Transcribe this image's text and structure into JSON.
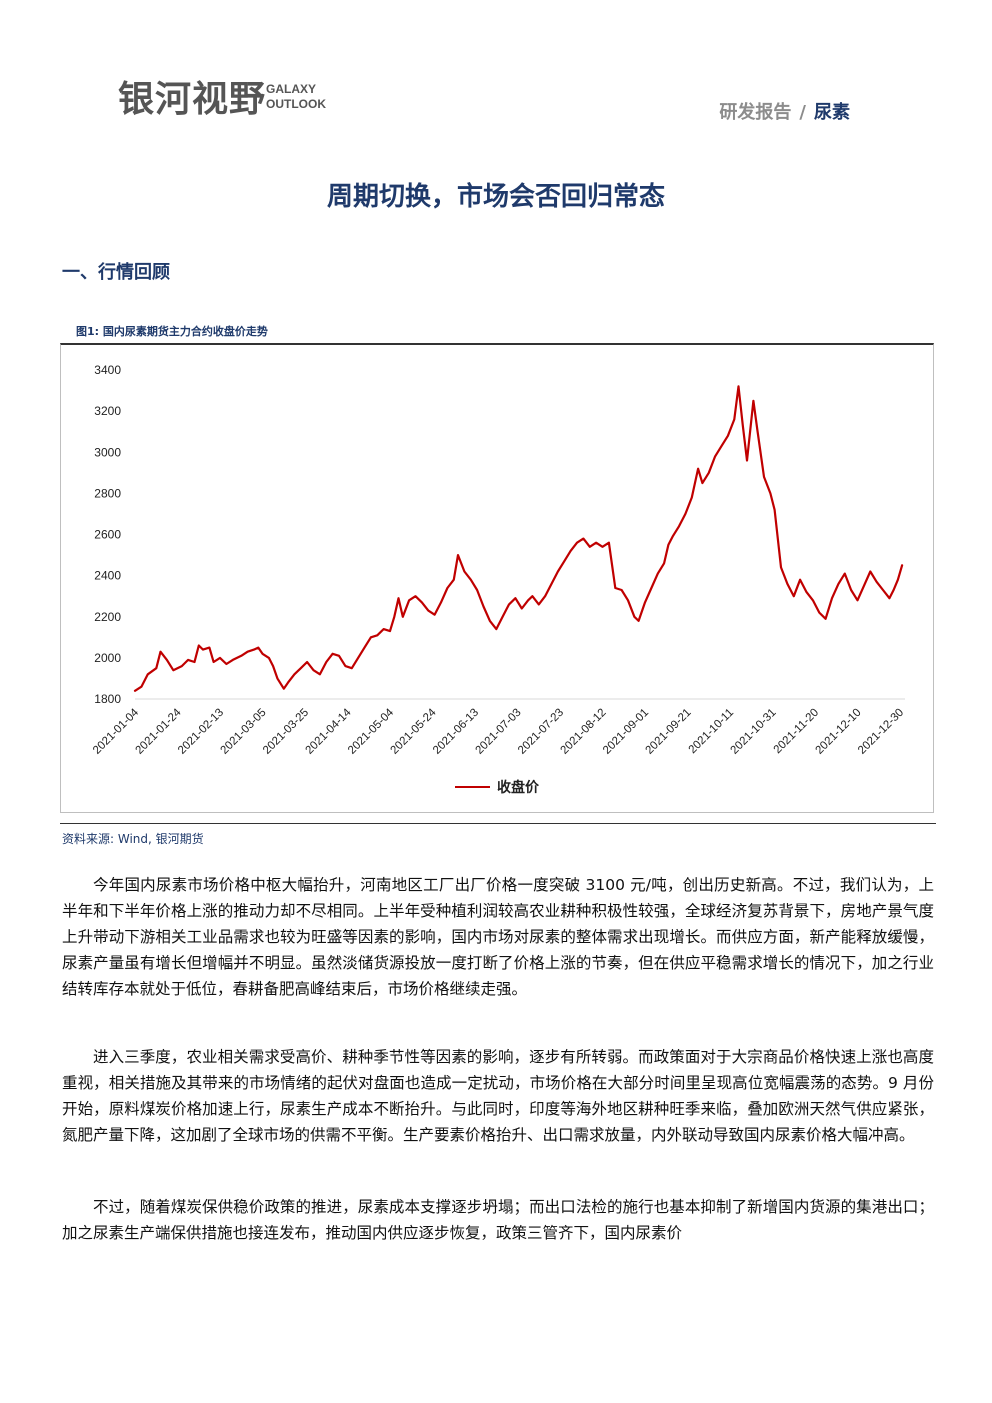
{
  "header": {
    "logo_cn": "银河视野",
    "logo_en_line1": "GALAXY",
    "logo_en_line2": "OUTLOOK",
    "report_type": "研发报告",
    "separator": "/",
    "category": "尿素"
  },
  "title": "周期切换，市场会否回归常态",
  "section1_title": "一、行情回顾",
  "figure": {
    "caption": "图1: 国内尿素期货主力合约收盘价走势",
    "source": "资料来源: Wind, 银河期货"
  },
  "chart_data": {
    "type": "line",
    "title": "",
    "xlabel": "",
    "ylabel": "",
    "ylim": [
      1800,
      3400
    ],
    "y_ticks": [
      1800,
      2000,
      2200,
      2400,
      2600,
      2800,
      3000,
      3200,
      3400
    ],
    "x_tick_labels": [
      "2021-01-04",
      "2021-01-24",
      "2021-02-13",
      "2021-03-05",
      "2021-03-25",
      "2021-04-14",
      "2021-05-04",
      "2021-05-24",
      "2021-06-13",
      "2021-07-03",
      "2021-07-23",
      "2021-08-12",
      "2021-09-01",
      "2021-09-21",
      "2021-10-11",
      "2021-10-31",
      "2021-11-20",
      "2021-12-10",
      "2021-12-30"
    ],
    "x_range": [
      "2021-01-04",
      "2021-12-31"
    ],
    "grid": false,
    "legend_position": "bottom",
    "series": [
      {
        "name": "收盘价",
        "color": "#c00000",
        "points": [
          [
            "2021-01-04",
            1840
          ],
          [
            "2021-01-07",
            1860
          ],
          [
            "2021-01-10",
            1920
          ],
          [
            "2021-01-14",
            1950
          ],
          [
            "2021-01-16",
            2030
          ],
          [
            "2021-01-19",
            1990
          ],
          [
            "2021-01-22",
            1940
          ],
          [
            "2021-01-26",
            1960
          ],
          [
            "2021-01-29",
            1990
          ],
          [
            "2021-02-01",
            1980
          ],
          [
            "2021-02-03",
            2060
          ],
          [
            "2021-02-05",
            2040
          ],
          [
            "2021-02-08",
            2050
          ],
          [
            "2021-02-10",
            1980
          ],
          [
            "2021-02-13",
            2000
          ],
          [
            "2021-02-16",
            1970
          ],
          [
            "2021-02-19",
            1990
          ],
          [
            "2021-02-23",
            2010
          ],
          [
            "2021-02-26",
            2030
          ],
          [
            "2021-03-01",
            2040
          ],
          [
            "2021-03-03",
            2050
          ],
          [
            "2021-03-05",
            2020
          ],
          [
            "2021-03-08",
            2000
          ],
          [
            "2021-03-10",
            1960
          ],
          [
            "2021-03-12",
            1900
          ],
          [
            "2021-03-15",
            1850
          ],
          [
            "2021-03-17",
            1880
          ],
          [
            "2021-03-20",
            1920
          ],
          [
            "2021-03-23",
            1950
          ],
          [
            "2021-03-26",
            1980
          ],
          [
            "2021-03-29",
            1940
          ],
          [
            "2021-04-01",
            1920
          ],
          [
            "2021-04-04",
            1980
          ],
          [
            "2021-04-07",
            2020
          ],
          [
            "2021-04-10",
            2010
          ],
          [
            "2021-04-13",
            1960
          ],
          [
            "2021-04-16",
            1950
          ],
          [
            "2021-04-19",
            2000
          ],
          [
            "2021-04-22",
            2050
          ],
          [
            "2021-04-25",
            2100
          ],
          [
            "2021-04-28",
            2110
          ],
          [
            "2021-05-01",
            2140
          ],
          [
            "2021-05-04",
            2130
          ],
          [
            "2021-05-06",
            2200
          ],
          [
            "2021-05-08",
            2290
          ],
          [
            "2021-05-10",
            2200
          ],
          [
            "2021-05-13",
            2280
          ],
          [
            "2021-05-16",
            2300
          ],
          [
            "2021-05-19",
            2270
          ],
          [
            "2021-05-22",
            2230
          ],
          [
            "2021-05-25",
            2210
          ],
          [
            "2021-05-28",
            2270
          ],
          [
            "2021-05-31",
            2340
          ],
          [
            "2021-06-03",
            2380
          ],
          [
            "2021-06-05",
            2500
          ],
          [
            "2021-06-08",
            2420
          ],
          [
            "2021-06-11",
            2380
          ],
          [
            "2021-06-14",
            2330
          ],
          [
            "2021-06-17",
            2250
          ],
          [
            "2021-06-20",
            2180
          ],
          [
            "2021-06-23",
            2140
          ],
          [
            "2021-06-26",
            2200
          ],
          [
            "2021-06-29",
            2260
          ],
          [
            "2021-07-02",
            2290
          ],
          [
            "2021-07-05",
            2240
          ],
          [
            "2021-07-08",
            2280
          ],
          [
            "2021-07-10",
            2300
          ],
          [
            "2021-07-13",
            2260
          ],
          [
            "2021-07-16",
            2300
          ],
          [
            "2021-07-19",
            2360
          ],
          [
            "2021-07-22",
            2420
          ],
          [
            "2021-07-25",
            2470
          ],
          [
            "2021-07-28",
            2520
          ],
          [
            "2021-07-31",
            2560
          ],
          [
            "2021-08-03",
            2580
          ],
          [
            "2021-08-06",
            2540
          ],
          [
            "2021-08-09",
            2560
          ],
          [
            "2021-08-12",
            2540
          ],
          [
            "2021-08-15",
            2560
          ],
          [
            "2021-08-18",
            2340
          ],
          [
            "2021-08-21",
            2330
          ],
          [
            "2021-08-24",
            2280
          ],
          [
            "2021-08-27",
            2200
          ],
          [
            "2021-08-29",
            2180
          ],
          [
            "2021-09-01",
            2270
          ],
          [
            "2021-09-04",
            2340
          ],
          [
            "2021-09-07",
            2410
          ],
          [
            "2021-09-10",
            2460
          ],
          [
            "2021-09-12",
            2550
          ],
          [
            "2021-09-14",
            2590
          ],
          [
            "2021-09-17",
            2640
          ],
          [
            "2021-09-20",
            2700
          ],
          [
            "2021-09-23",
            2780
          ],
          [
            "2021-09-26",
            2920
          ],
          [
            "2021-09-28",
            2850
          ],
          [
            "2021-10-01",
            2900
          ],
          [
            "2021-10-04",
            2980
          ],
          [
            "2021-10-07",
            3030
          ],
          [
            "2021-10-10",
            3080
          ],
          [
            "2021-10-13",
            3160
          ],
          [
            "2021-10-15",
            3320
          ],
          [
            "2021-10-17",
            3130
          ],
          [
            "2021-10-19",
            2960
          ],
          [
            "2021-10-22",
            3250
          ],
          [
            "2021-10-24",
            3100
          ],
          [
            "2021-10-27",
            2880
          ],
          [
            "2021-10-30",
            2800
          ],
          [
            "2021-11-01",
            2720
          ],
          [
            "2021-11-04",
            2440
          ],
          [
            "2021-11-07",
            2360
          ],
          [
            "2021-11-10",
            2300
          ],
          [
            "2021-11-13",
            2380
          ],
          [
            "2021-11-16",
            2320
          ],
          [
            "2021-11-19",
            2280
          ],
          [
            "2021-11-22",
            2220
          ],
          [
            "2021-11-25",
            2190
          ],
          [
            "2021-11-28",
            2290
          ],
          [
            "2021-12-01",
            2360
          ],
          [
            "2021-12-04",
            2410
          ],
          [
            "2021-12-07",
            2330
          ],
          [
            "2021-12-10",
            2280
          ],
          [
            "2021-12-13",
            2350
          ],
          [
            "2021-12-16",
            2420
          ],
          [
            "2021-12-19",
            2370
          ],
          [
            "2021-12-22",
            2330
          ],
          [
            "2021-12-25",
            2290
          ],
          [
            "2021-12-27",
            2330
          ],
          [
            "2021-12-29",
            2380
          ],
          [
            "2021-12-31",
            2450
          ]
        ]
      }
    ]
  },
  "paragraphs": [
    "今年国内尿素市场价格中枢大幅抬升，河南地区工厂出厂价格一度突破 3100 元/吨，创出历史新高。不过，我们认为，上半年和下半年价格上涨的推动力却不尽相同。上半年受种植利润较高农业耕种积极性较强，全球经济复苏背景下，房地产景气度上升带动下游相关工业品需求也较为旺盛等因素的影响，国内市场对尿素的整体需求出现增长。而供应方面，新产能释放缓慢，尿素产量虽有增长但增幅并不明显。虽然淡储货源投放一度打断了价格上涨的节奏，但在供应平稳需求增长的情况下，加之行业结转库存本就处于低位，春耕备肥高峰结束后，市场价格继续走强。",
    "进入三季度，农业相关需求受高价、耕种季节性等因素的影响，逐步有所转弱。而政策面对于大宗商品价格快速上涨也高度重视，相关措施及其带来的市场情绪的起伏对盘面也造成一定扰动，市场价格在大部分时间里呈现高位宽幅震荡的态势。9 月份开始，原料煤炭价格加速上行，尿素生产成本不断抬升。与此同时，印度等海外地区耕种旺季来临，叠加欧洲天然气供应紧张，氮肥产量下降，这加剧了全球市场的供需不平衡。生产要素价格抬升、出口需求放量，内外联动导致国内尿素价格大幅冲高。",
    "不过，随着煤炭保供稳价政策的推进，尿素成本支撑逐步坍塌；而出口法检的施行也基本抑制了新增国内货源的集港出口；加之尿素生产端保供措施也接连发布，推动国内供应逐步恢复，政策三管齐下，国内尿素价"
  ]
}
